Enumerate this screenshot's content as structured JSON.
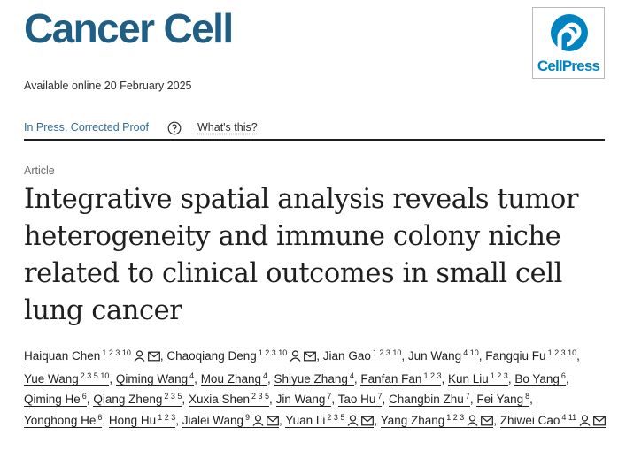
{
  "journal": {
    "name": "Cancer Cell"
  },
  "logo": {
    "text": "CellPress",
    "color": "#0083c1"
  },
  "availability": "Available online 20 February 2025",
  "status": {
    "label": "In Press, Corrected Proof",
    "help_icon": "question-circle-icon",
    "help_label": "What's this?"
  },
  "article": {
    "type": "Article",
    "title_lines": [
      "Integrative spatial analysis reveals tumor",
      "heterogeneity and immune colony niche",
      "related to clinical outcomes in small cell",
      "lung cancer"
    ]
  },
  "authors": [
    {
      "name": "Haiquan Chen",
      "sup": "1 2 3 10",
      "icons": [
        "person-icon",
        "mail-icon"
      ],
      "sep": ","
    },
    {
      "name": "Chaoqiang Deng",
      "sup": "1 2 3 10",
      "icons": [
        "person-icon",
        "mail-icon"
      ],
      "sep": ","
    },
    {
      "name": "Jian Gao",
      "sup": "1 2 3 10",
      "icons": [],
      "sep": ","
    },
    {
      "name": "Jun Wang",
      "sup": "4 10",
      "icons": [],
      "sep": ","
    },
    {
      "name": "Fangqiu Fu",
      "sup": "1 2 3 10",
      "icons": [],
      "sep": ","
    },
    {
      "name": "Yue Wang",
      "sup": "2 3 5 10",
      "icons": [],
      "sep": ","
    },
    {
      "name": "Qiming Wang",
      "sup": "4",
      "icons": [],
      "sep": ","
    },
    {
      "name": "Mou Zhang",
      "sup": "4",
      "icons": [],
      "sep": ","
    },
    {
      "name": "Shiyue Zhang",
      "sup": "4",
      "icons": [],
      "sep": ","
    },
    {
      "name": "Fanfan Fan",
      "sup": "1 2 3",
      "icons": [],
      "sep": ","
    },
    {
      "name": "Kun Liu",
      "sup": "1 2 3",
      "icons": [],
      "sep": ","
    },
    {
      "name": "Bo Yang",
      "sup": "6",
      "icons": [],
      "sep": ","
    },
    {
      "name": "Qiming He",
      "sup": "6",
      "icons": [],
      "sep": ","
    },
    {
      "name": "Qiang Zheng",
      "sup": "2 3 5",
      "icons": [],
      "sep": ","
    },
    {
      "name": "Xuxia Shen",
      "sup": "2 3 5",
      "icons": [],
      "sep": ","
    },
    {
      "name": "Jin Wang",
      "sup": "7",
      "icons": [],
      "sep": ","
    },
    {
      "name": "Tao Hu",
      "sup": "7",
      "icons": [],
      "sep": ","
    },
    {
      "name": "Changbin Zhu",
      "sup": "7",
      "icons": [],
      "sep": ","
    },
    {
      "name": "Fei Yang",
      "sup": "8",
      "icons": [],
      "sep": ","
    },
    {
      "name": "Yonghong He",
      "sup": "6",
      "icons": [],
      "sep": ","
    },
    {
      "name": "Hong Hu",
      "sup": "1 2 3",
      "icons": [],
      "sep": ","
    },
    {
      "name": "Jialei Wang",
      "sup": "9",
      "icons": [
        "person-icon",
        "mail-icon"
      ],
      "sep": ","
    },
    {
      "name": "Yuan Li",
      "sup": "2 3 5",
      "icons": [
        "person-icon",
        "mail-icon"
      ],
      "sep": ","
    },
    {
      "name": "Yang Zhang",
      "sup": "1 2 3",
      "icons": [
        "person-icon",
        "mail-icon"
      ],
      "sep": ","
    },
    {
      "name": "Zhiwei Cao",
      "sup": "4 11",
      "icons": [
        "person-icon",
        "mail-icon"
      ],
      "sep": ""
    }
  ]
}
